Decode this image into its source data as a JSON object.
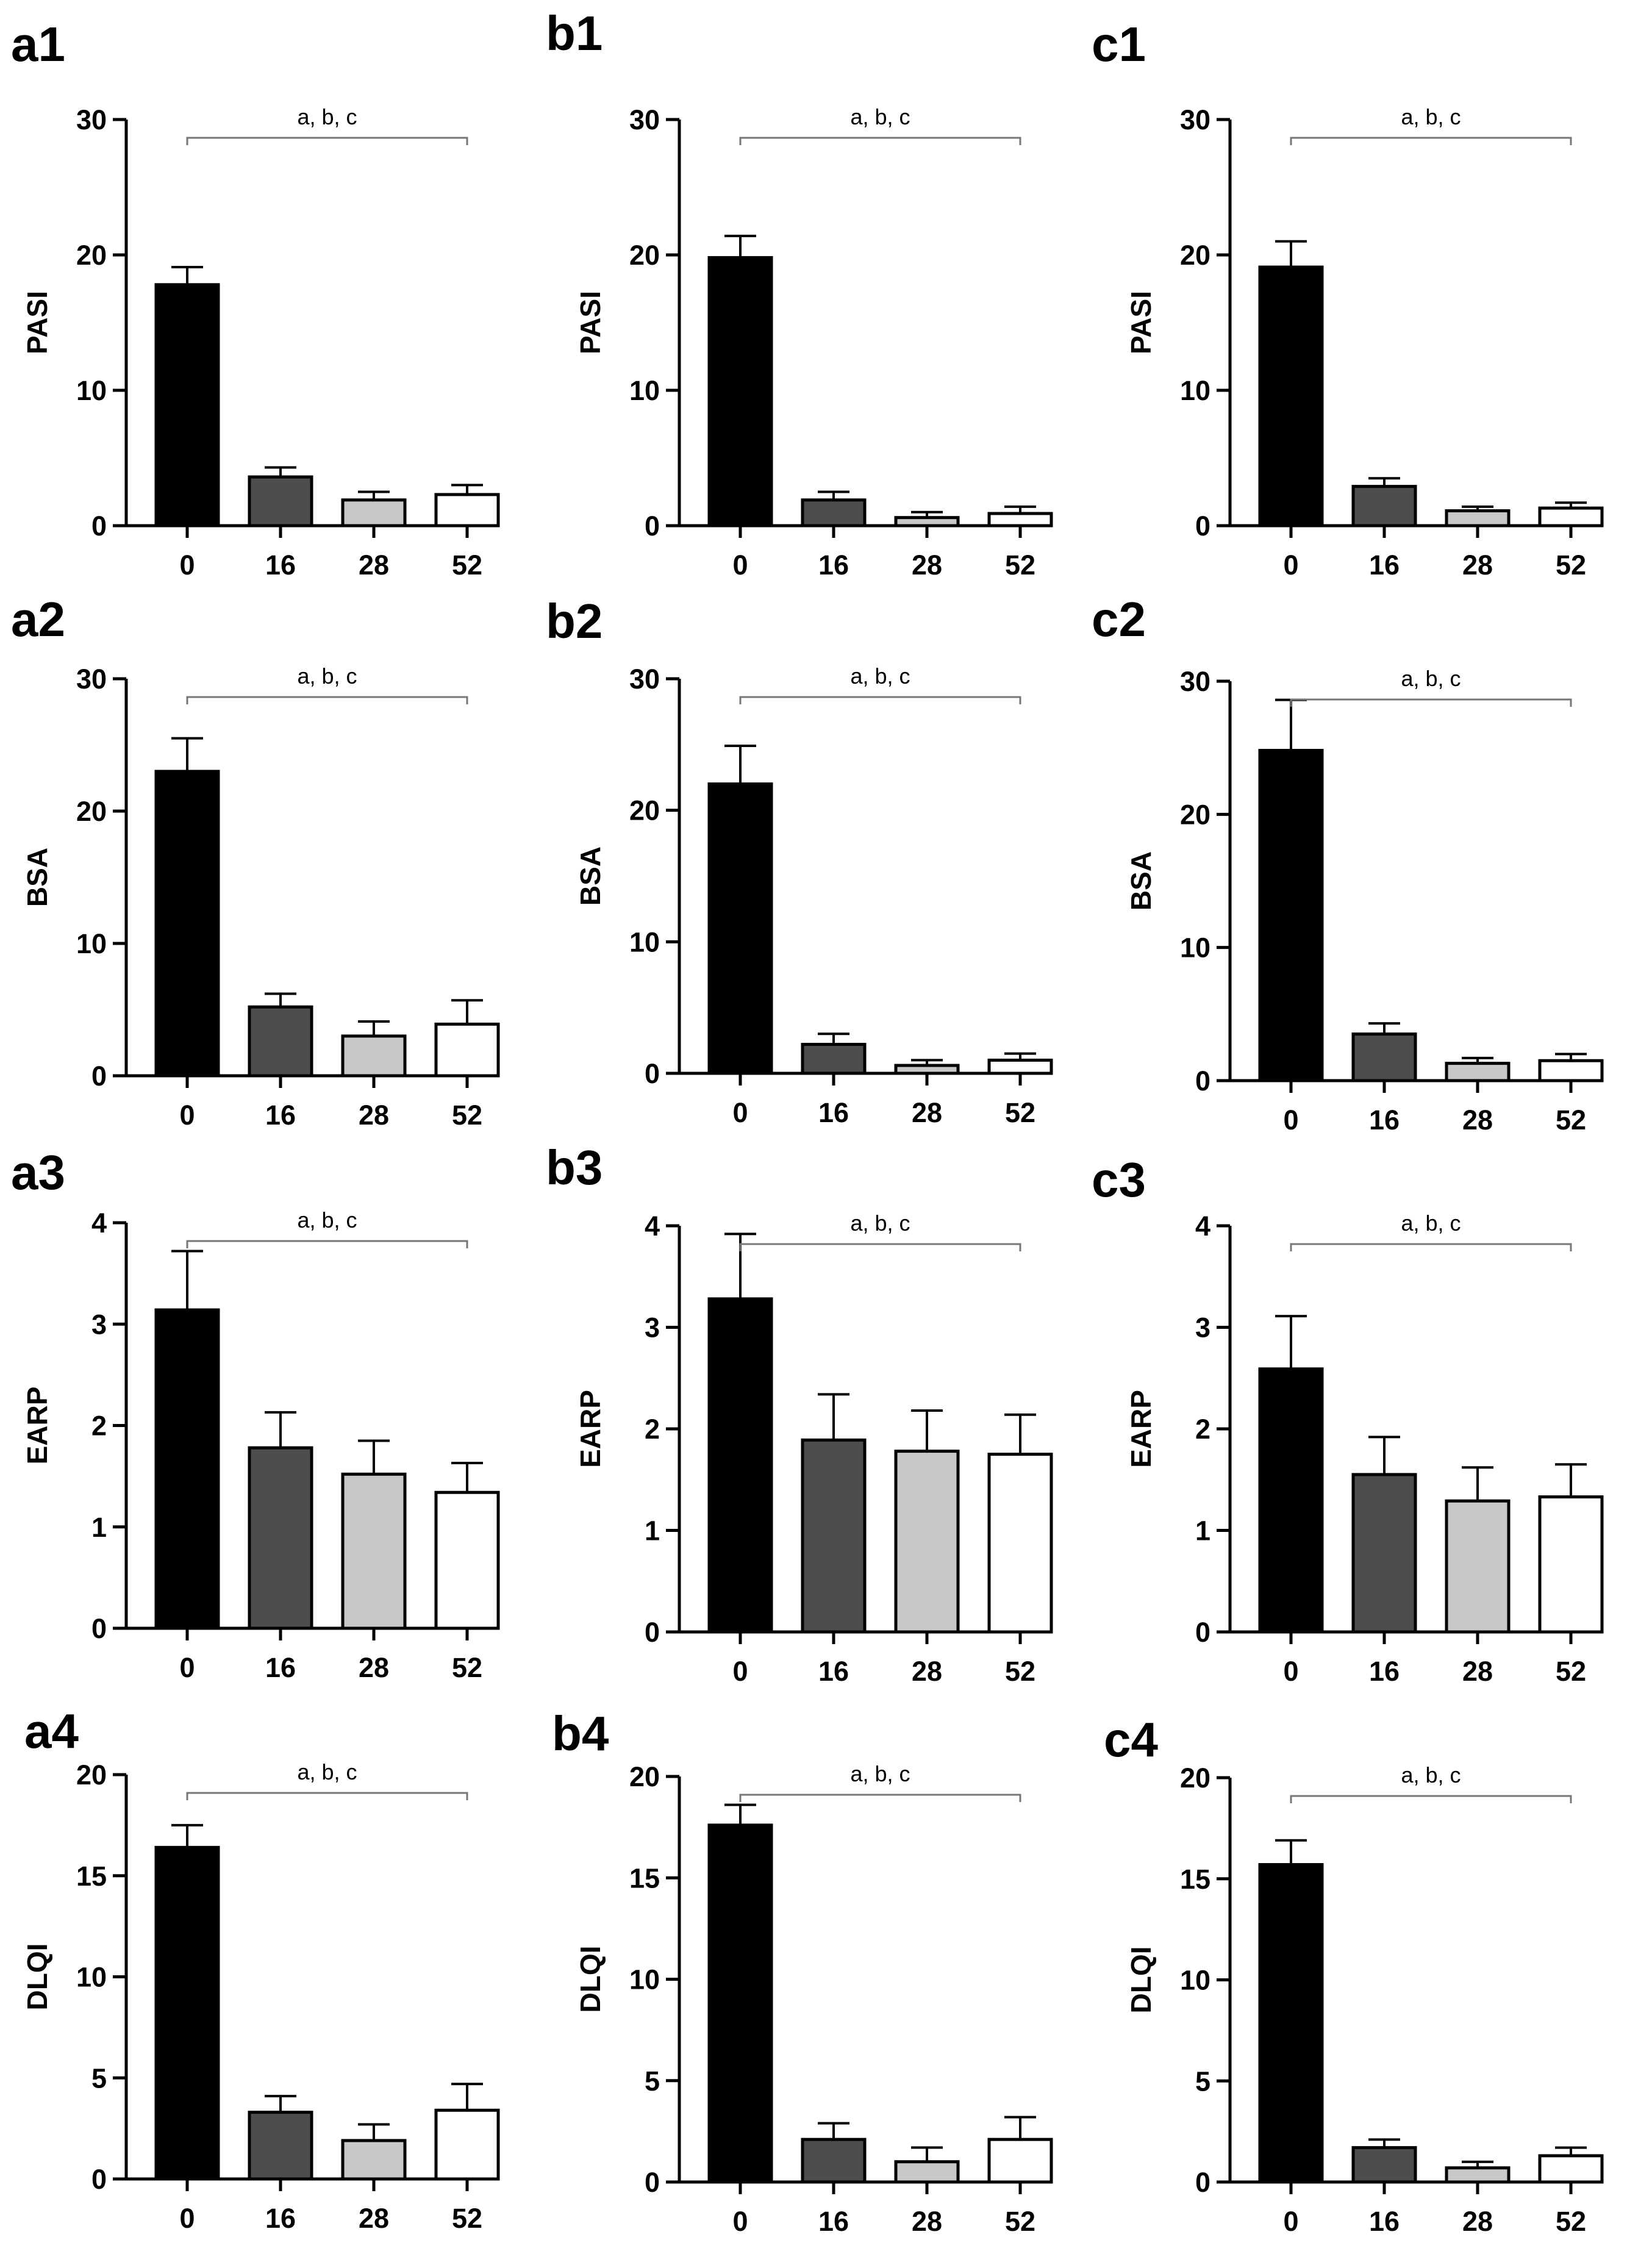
{
  "figure": {
    "x_categories": [
      "0",
      "16",
      "28",
      "52"
    ],
    "significance_text": "a, b, c"
  },
  "chart_data": [
    {
      "type": "bar",
      "label": "a1",
      "ylabel": "PASI",
      "ylim": [
        0,
        30
      ],
      "yticks": [
        0,
        10,
        20,
        30
      ],
      "categories": [
        "0",
        "16",
        "28",
        "52"
      ],
      "values": [
        17.8,
        3.6,
        1.9,
        2.3
      ],
      "errors": [
        1.3,
        0.7,
        0.6,
        0.7
      ],
      "annotation": "a, b, c",
      "bar_colors": [
        "#000000",
        "#4d4d4d",
        "#c8c8c8",
        "#ffffff"
      ]
    },
    {
      "type": "bar",
      "label": "b1",
      "ylabel": "PASI",
      "ylim": [
        0,
        30
      ],
      "yticks": [
        0,
        10,
        20,
        30
      ],
      "categories": [
        "0",
        "16",
        "28",
        "52"
      ],
      "values": [
        19.8,
        1.9,
        0.6,
        0.9
      ],
      "errors": [
        1.6,
        0.6,
        0.4,
        0.5
      ],
      "annotation": "a, b, c",
      "bar_colors": [
        "#000000",
        "#4d4d4d",
        "#c8c8c8",
        "#ffffff"
      ]
    },
    {
      "type": "bar",
      "label": "c1",
      "ylabel": "PASI",
      "ylim": [
        0,
        30
      ],
      "yticks": [
        0,
        10,
        20,
        30
      ],
      "categories": [
        "0",
        "16",
        "28",
        "52"
      ],
      "values": [
        19.1,
        2.9,
        1.1,
        1.3
      ],
      "errors": [
        1.9,
        0.6,
        0.3,
        0.4
      ],
      "annotation": "a, b, c",
      "bar_colors": [
        "#000000",
        "#4d4d4d",
        "#c8c8c8",
        "#ffffff"
      ]
    },
    {
      "type": "bar",
      "label": "a2",
      "ylabel": "BSA",
      "ylim": [
        0,
        30
      ],
      "yticks": [
        0,
        10,
        20,
        30
      ],
      "categories": [
        "0",
        "16",
        "28",
        "52"
      ],
      "values": [
        23.0,
        5.2,
        3.0,
        3.9
      ],
      "errors": [
        2.5,
        1.0,
        1.1,
        1.8
      ],
      "annotation": "a, b, c",
      "bar_colors": [
        "#000000",
        "#4d4d4d",
        "#c8c8c8",
        "#ffffff"
      ]
    },
    {
      "type": "bar",
      "label": "b2",
      "ylabel": "BSA",
      "ylim": [
        0,
        30
      ],
      "yticks": [
        0,
        10,
        20,
        30
      ],
      "categories": [
        "0",
        "16",
        "28",
        "52"
      ],
      "values": [
        22.0,
        2.2,
        0.6,
        1.0
      ],
      "errors": [
        2.9,
        0.8,
        0.4,
        0.5
      ],
      "annotation": "a, b, c",
      "bar_colors": [
        "#000000",
        "#4d4d4d",
        "#c8c8c8",
        "#ffffff"
      ]
    },
    {
      "type": "bar",
      "label": "c2",
      "ylabel": "BSA",
      "ylim": [
        0,
        30
      ],
      "yticks": [
        0,
        10,
        20,
        30
      ],
      "categories": [
        "0",
        "16",
        "28",
        "52"
      ],
      "values": [
        24.8,
        3.5,
        1.3,
        1.5
      ],
      "errors": [
        3.8,
        0.8,
        0.4,
        0.5
      ],
      "annotation": "a, b, c",
      "bar_colors": [
        "#000000",
        "#4d4d4d",
        "#c8c8c8",
        "#ffffff"
      ]
    },
    {
      "type": "bar",
      "label": "a3",
      "ylabel": "EARP",
      "ylim": [
        0,
        4
      ],
      "yticks": [
        0,
        1,
        2,
        3,
        4
      ],
      "categories": [
        "0",
        "16",
        "28",
        "52"
      ],
      "values": [
        3.14,
        1.78,
        1.52,
        1.34
      ],
      "errors": [
        0.58,
        0.35,
        0.33,
        0.29
      ],
      "annotation": "a, b, c",
      "bar_colors": [
        "#000000",
        "#4d4d4d",
        "#c8c8c8",
        "#ffffff"
      ]
    },
    {
      "type": "bar",
      "label": "b3",
      "ylabel": "EARP",
      "ylim": [
        0,
        4
      ],
      "yticks": [
        0,
        1,
        2,
        3,
        4
      ],
      "categories": [
        "0",
        "16",
        "28",
        "52"
      ],
      "values": [
        3.28,
        1.89,
        1.78,
        1.75
      ],
      "errors": [
        0.64,
        0.45,
        0.4,
        0.39
      ],
      "annotation": "a, b, c",
      "bar_colors": [
        "#000000",
        "#4d4d4d",
        "#c8c8c8",
        "#ffffff"
      ]
    },
    {
      "type": "bar",
      "label": "c3",
      "ylabel": "EARP",
      "ylim": [
        0,
        4
      ],
      "yticks": [
        0,
        1,
        2,
        3,
        4
      ],
      "categories": [
        "0",
        "16",
        "28",
        "52"
      ],
      "values": [
        2.59,
        1.55,
        1.29,
        1.33
      ],
      "errors": [
        0.52,
        0.37,
        0.33,
        0.32
      ],
      "annotation": "a, b, c",
      "bar_colors": [
        "#000000",
        "#4d4d4d",
        "#c8c8c8",
        "#ffffff"
      ]
    },
    {
      "type": "bar",
      "label": "a4",
      "ylabel": "DLQI",
      "ylim": [
        0,
        20
      ],
      "yticks": [
        0,
        5,
        10,
        15,
        20
      ],
      "categories": [
        "0",
        "16",
        "28",
        "52"
      ],
      "values": [
        16.4,
        3.3,
        1.9,
        3.4
      ],
      "errors": [
        1.1,
        0.8,
        0.8,
        1.3
      ],
      "annotation": "a, b, c",
      "bar_colors": [
        "#000000",
        "#4d4d4d",
        "#c8c8c8",
        "#ffffff"
      ]
    },
    {
      "type": "bar",
      "label": "b4",
      "ylabel": "DLQI",
      "ylim": [
        0,
        20
      ],
      "yticks": [
        0,
        5,
        10,
        15,
        20
      ],
      "categories": [
        "0",
        "16",
        "28",
        "52"
      ],
      "values": [
        17.6,
        2.1,
        1.0,
        2.1
      ],
      "errors": [
        1.0,
        0.8,
        0.7,
        1.1
      ],
      "annotation": "a, b, c",
      "bar_colors": [
        "#000000",
        "#4d4d4d",
        "#c8c8c8",
        "#ffffff"
      ]
    },
    {
      "type": "bar",
      "label": "c4",
      "ylabel": "DLQI",
      "ylim": [
        0,
        20
      ],
      "yticks": [
        0,
        5,
        10,
        15,
        20
      ],
      "categories": [
        "0",
        "16",
        "28",
        "52"
      ],
      "values": [
        15.7,
        1.7,
        0.7,
        1.3
      ],
      "errors": [
        1.2,
        0.4,
        0.3,
        0.4
      ],
      "annotation": "a, b, c",
      "bar_colors": [
        "#000000",
        "#4d4d4d",
        "#c8c8c8",
        "#ffffff"
      ]
    }
  ]
}
